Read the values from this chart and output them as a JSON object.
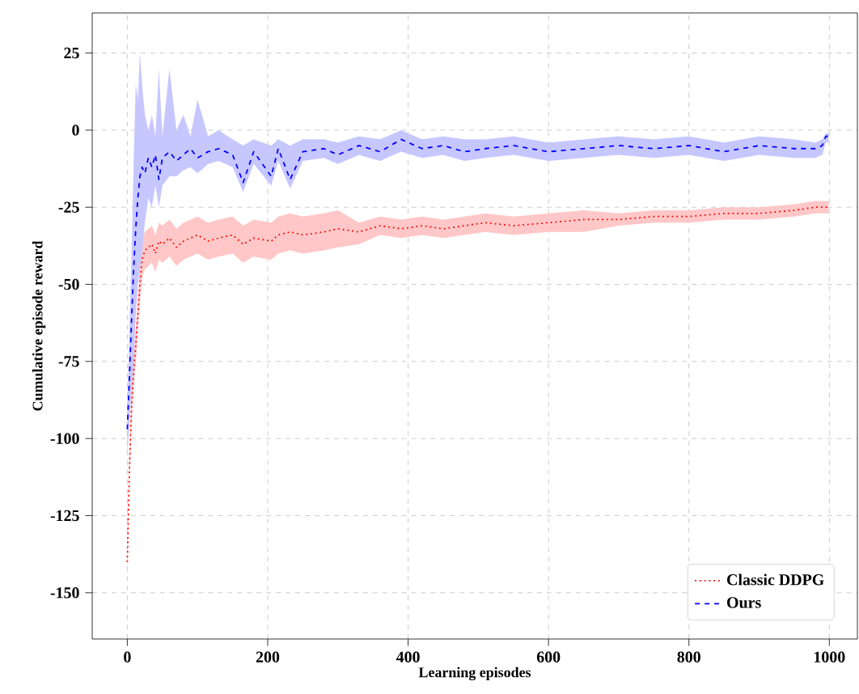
{
  "chart_data": {
    "type": "line",
    "xlabel": "Learning episodes",
    "ylabel": "Cumulative episode reward",
    "xlim": [
      -50,
      1040
    ],
    "ylim": [
      -165,
      38
    ],
    "xticks": [
      0,
      200,
      400,
      600,
      800,
      1000
    ],
    "yticks": [
      25,
      0,
      -25,
      -50,
      -75,
      -100,
      -125,
      -150
    ],
    "grid": true,
    "legend": "bottom right",
    "x": [
      0,
      3,
      6,
      9,
      12,
      15,
      18,
      21,
      25,
      30,
      35,
      40,
      45,
      50,
      60,
      70,
      80,
      90,
      100,
      115,
      130,
      150,
      165,
      180,
      205,
      215,
      232,
      250,
      280,
      300,
      330,
      360,
      390,
      420,
      450,
      480,
      510,
      550,
      600,
      650,
      700,
      750,
      800,
      850,
      900,
      950,
      980,
      990,
      995,
      999
    ],
    "series": [
      {
        "name": "Classic DDPG",
        "color": "#ff0000",
        "line_style": "dotted",
        "values": [
          -140,
          -110,
          -90,
          -78,
          -70,
          -60,
          -50,
          -42,
          -39,
          -38,
          -37,
          -40,
          -36,
          -37,
          -35,
          -38,
          -36,
          -35,
          -34,
          -36,
          -35,
          -34,
          -37,
          -35,
          -36,
          -34,
          -33,
          -34,
          -33,
          -32,
          -33,
          -31,
          -32,
          -31,
          -32,
          -31,
          -30,
          -31,
          -30,
          -29,
          -29,
          -28,
          -28,
          -27,
          -27,
          -26,
          -25,
          -25,
          -25,
          -25
        ],
        "upper": [
          -135,
          -104,
          -84,
          -72,
          -64,
          -54,
          -44,
          -36,
          -33,
          -32,
          -31,
          -34,
          -30,
          -31,
          -29,
          -32,
          -30,
          -29,
          -28,
          -30,
          -29,
          -28,
          -31,
          -29,
          -30,
          -28,
          -27,
          -28,
          -27,
          -26,
          -30,
          -28,
          -29,
          -28,
          -29,
          -28,
          -27,
          -28,
          -27,
          -26,
          -27,
          -26,
          -26,
          -25,
          -25,
          -24,
          -23,
          -23,
          -23,
          -23
        ],
        "lower": [
          -145,
          -116,
          -96,
          -84,
          -76,
          -66,
          -56,
          -48,
          -45,
          -44,
          -43,
          -46,
          -42,
          -43,
          -41,
          -44,
          -42,
          -41,
          -40,
          -42,
          -41,
          -40,
          -43,
          -41,
          -42,
          -40,
          -39,
          -40,
          -39,
          -38,
          -37,
          -34,
          -35,
          -34,
          -35,
          -34,
          -33,
          -34,
          -33,
          -33,
          -31,
          -30,
          -30,
          -29,
          -29,
          -28,
          -27,
          -27,
          -27,
          -27
        ]
      },
      {
        "name": "Ours",
        "color": "#0000ff",
        "line_style": "dashed",
        "values": [
          -97,
          -80,
          -62,
          -45,
          -32,
          -22,
          -15,
          -12,
          -14,
          -9,
          -12,
          -8,
          -16,
          -9,
          -7,
          -10,
          -8,
          -6,
          -9,
          -7,
          -6,
          -8,
          -17,
          -7,
          -15,
          -6,
          -16,
          -7,
          -6,
          -8,
          -5,
          -7,
          -3,
          -6,
          -5,
          -7,
          -6,
          -5,
          -7,
          -6,
          -5,
          -6,
          -5,
          -7,
          -5,
          -6,
          -6,
          -5,
          -2,
          -2
        ],
        "upper": [
          -90,
          -65,
          -40,
          -10,
          15,
          10,
          25,
          15,
          5,
          0,
          5,
          -2,
          20,
          -2,
          20,
          0,
          5,
          -2,
          10,
          -2,
          0,
          -3,
          -5,
          -3,
          -5,
          -3,
          -5,
          -3,
          -3,
          -4,
          -2,
          -3,
          0,
          -3,
          -2,
          -3,
          -3,
          -2,
          -4,
          -3,
          -2,
          -3,
          -2,
          -4,
          -2,
          -3,
          -4,
          -3,
          -1,
          -1
        ],
        "lower": [
          -105,
          -95,
          -85,
          -75,
          -60,
          -50,
          -45,
          -40,
          -30,
          -22,
          -25,
          -18,
          -25,
          -18,
          -15,
          -15,
          -13,
          -12,
          -14,
          -11,
          -10,
          -12,
          -20,
          -11,
          -18,
          -10,
          -19,
          -10,
          -9,
          -11,
          -8,
          -10,
          -7,
          -9,
          -8,
          -10,
          -9,
          -8,
          -10,
          -9,
          -8,
          -9,
          -8,
          -10,
          -8,
          -9,
          -9,
          -8,
          -4,
          -4
        ]
      }
    ]
  }
}
